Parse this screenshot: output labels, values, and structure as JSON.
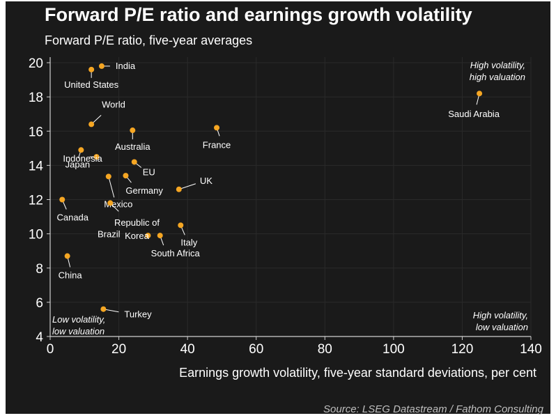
{
  "header": {
    "title": "Forward P/E ratio and earnings growth volatility",
    "subtitle": "Forward P/E ratio, five-year averages"
  },
  "footer": {
    "source": "Source: LSEG Datastream / Fathom Consulting"
  },
  "colors": {
    "background": "#1a1a1a",
    "point": "#f5a623",
    "text": "#ffffff",
    "grid": "#2a2a2a"
  },
  "chart_data": {
    "type": "scatter",
    "xlabel": "Earnings growth volatility, five-year standard deviations, per cent",
    "ylabel": "",
    "xlim": [
      0,
      140
    ],
    "ylim": [
      4,
      20
    ],
    "xticks": [
      0,
      20,
      40,
      60,
      80,
      100,
      120,
      140
    ],
    "yticks": [
      4,
      6,
      8,
      10,
      12,
      14,
      16,
      18,
      20
    ],
    "grid": true,
    "annotations": [
      {
        "lines": [
          "High volatility,",
          "high valuation"
        ],
        "corner": "top-right"
      },
      {
        "lines": [
          "Low volatility,",
          "low valuation"
        ],
        "corner": "bottom-left"
      },
      {
        "lines": [
          "High volatility,",
          "low valuation"
        ],
        "corner": "bottom-right"
      }
    ],
    "points": [
      {
        "name": "India",
        "x": 15,
        "y": 19.8
      },
      {
        "name": "United States",
        "x": 12,
        "y": 19.6
      },
      {
        "name": "World",
        "x": 12,
        "y": 16.4
      },
      {
        "name": "Australia",
        "x": 24,
        "y": 16.05
      },
      {
        "name": "France",
        "x": 48.5,
        "y": 16.2
      },
      {
        "name": "Japan",
        "x": 9,
        "y": 14.9
      },
      {
        "name": "Indonesia",
        "x": 13.5,
        "y": 14.5
      },
      {
        "name": "EU",
        "x": 24.5,
        "y": 14.2
      },
      {
        "name": "Germany",
        "x": 22,
        "y": 13.4
      },
      {
        "name": "Mexico",
        "x": 17,
        "y": 13.35
      },
      {
        "name": "UK",
        "x": 37.5,
        "y": 12.6
      },
      {
        "name": "Canada",
        "x": 3.5,
        "y": 12
      },
      {
        "name": "Republic of Korea",
        "x": 28.5,
        "y": 9.9
      },
      {
        "name": "Brazil",
        "x": 17.5,
        "y": 11.8
      },
      {
        "name": "Italy",
        "x": 38,
        "y": 10.5
      },
      {
        "name": "South Africa",
        "x": 32,
        "y": 9.9
      },
      {
        "name": "China",
        "x": 5,
        "y": 8.7
      },
      {
        "name": "Turkey",
        "x": 15.5,
        "y": 5.6
      },
      {
        "name": "Saudi Arabia",
        "x": 125,
        "y": 18.2
      }
    ]
  }
}
